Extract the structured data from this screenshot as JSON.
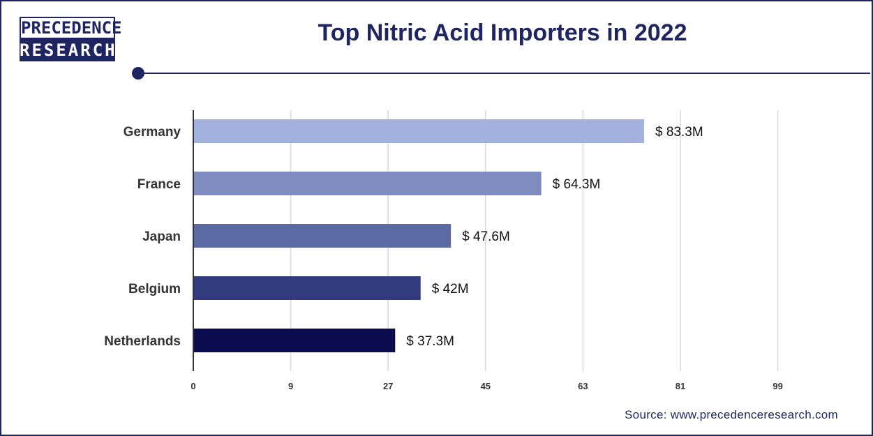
{
  "brand": {
    "logo_top": "PRECEDENCE",
    "logo_bottom": "RESEARCH"
  },
  "title": "Top Nitric Acid Importers in 2022",
  "source": "Source: www.precedenceresearch.com",
  "colors": {
    "brand": "#1f2560",
    "bars": [
      "#a3b2dc",
      "#7e8cc0",
      "#5c6aa4",
      "#323b7d",
      "#0a0c4f"
    ],
    "grid": "#d9d9d9"
  },
  "chart_data": {
    "type": "bar",
    "orientation": "horizontal",
    "title": "Top Nitric Acid Importers in 2022",
    "xlabel": "",
    "ylabel": "",
    "categories": [
      "Germany",
      "France",
      "Japan",
      "Belgium",
      "Netherlands"
    ],
    "values": [
      83.3,
      64.3,
      47.6,
      42,
      37.3
    ],
    "data_labels": [
      "$ 83.3M",
      "$ 64.3M",
      "$ 47.6M",
      "$ 42M",
      "$ 37.3M"
    ],
    "x_ticks": [
      "0",
      "9",
      "27",
      "45",
      "63",
      "81",
      "99"
    ],
    "grid": true,
    "legend": "none"
  }
}
